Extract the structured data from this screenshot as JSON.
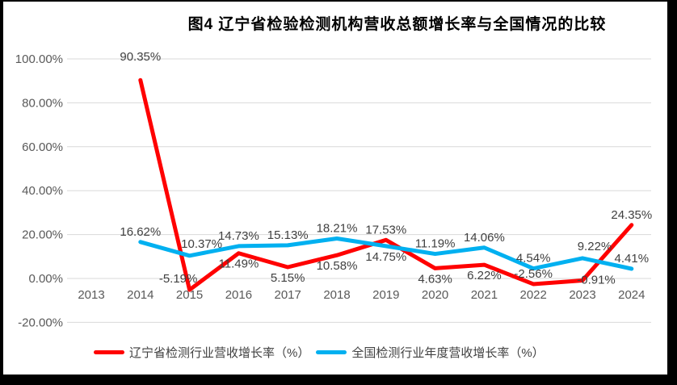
{
  "title": "图4 辽宁省检验检测机构营收总额增长率与全国情况的比较",
  "colors": {
    "frame": "#000000",
    "background": "#ffffff",
    "gridline": "#d9d9d9",
    "axis_text": "#595959",
    "data_label_text": "#404040",
    "title_text": "#000000",
    "series_red": "#ff0000",
    "series_blue": "#00b0f0"
  },
  "chart_data": {
    "type": "line",
    "title": "图4 辽宁省检验检测机构营收总额增长率与全国情况的比较",
    "categories": [
      "2013",
      "2014",
      "2015",
      "2016",
      "2017",
      "2018",
      "2019",
      "2020",
      "2021",
      "2022",
      "2023",
      "2024"
    ],
    "y_axis": {
      "tick_labels": [
        "100.00%",
        "80.00%",
        "60.00%",
        "40.00%",
        "20.00%",
        "0.00%",
        "-20.00%"
      ],
      "tick_values": [
        100,
        80,
        60,
        40,
        20,
        0,
        -20
      ],
      "min": -20,
      "max": 100,
      "grid": true
    },
    "legend_position": "bottom",
    "series": [
      {
        "key": "liaoning",
        "name": "辽宁省检测行业营收增长率（%）",
        "color": "#ff0000",
        "values": [
          null,
          90.35,
          -5.19,
          11.49,
          5.15,
          10.58,
          17.53,
          4.63,
          6.22,
          -2.56,
          -0.91,
          24.35
        ],
        "labels": [
          "",
          "90.35%",
          "-5.19%",
          "11.49%",
          "5.15%",
          "10.58%",
          "17.53%",
          "4.63%",
          "6.22%",
          "-2.56%",
          "-0.91%",
          "24.35%"
        ],
        "label_pos": [
          "",
          "above-far",
          "above-left",
          "below",
          "below",
          "below",
          "above",
          "below",
          "below",
          "above",
          "right",
          "above"
        ]
      },
      {
        "key": "national",
        "name": "全国检测行业年度营收增长率（%）",
        "color": "#00b0f0",
        "values": [
          null,
          16.62,
          10.37,
          14.73,
          15.13,
          18.21,
          14.75,
          11.19,
          14.06,
          4.54,
          9.22,
          4.41
        ],
        "labels": [
          "",
          "16.62%",
          "10.37%",
          "14.73%",
          "15.13%",
          "18.21%",
          "14.75%",
          "11.19%",
          "14.06%",
          "4.54%",
          "9.22%",
          "4.41%"
        ],
        "label_pos": [
          "",
          "above",
          "above-right",
          "above",
          "above",
          "above",
          "below",
          "above",
          "above",
          "above",
          "above-right",
          "above"
        ]
      }
    ]
  }
}
